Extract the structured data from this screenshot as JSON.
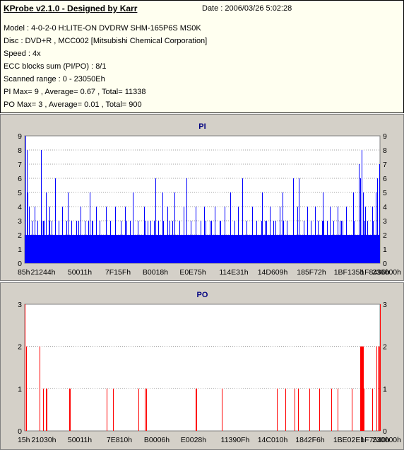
{
  "header": {
    "app_title": "KProbe v2.1.0 - Designed by Karr",
    "date": "Date : 2006/03/26 5:02:28",
    "model": "Model : 4-0-2-0 H:LITE-ON DVDRW SHM-165P6S MS0K",
    "disc": "Disc : DVD+R , MCC002 [Mitsubishi Chemical Corporation]",
    "speed": "Speed : 4x",
    "ecc": "ECC blocks sum (PI/PO) : 8/1",
    "range": "Scanned range : 0 - 23050Eh",
    "pi_stats": "PI Max= 9 , Average= 0.67 , Total= 11338",
    "po_stats": "PO Max= 3 , Average= 0.01 , Total= 900"
  },
  "colors": {
    "pi": "#0000ff",
    "po": "#ff0000",
    "plot_bg": "#ffffff",
    "panel_bg": "#d4d0c8",
    "title": "#000080"
  },
  "chart_data": [
    {
      "type": "bar",
      "title": "PI",
      "ylim": [
        0,
        9
      ],
      "yticks": [
        0,
        1,
        2,
        3,
        4,
        5,
        6,
        7,
        8,
        9
      ],
      "xlim": [
        0,
        1000
      ],
      "xtick_labels": [
        "85h",
        "21244h",
        "50011h",
        "7F15Fh",
        "B0018h",
        "E0E75h",
        "114E31h",
        "14D609h",
        "185F72h",
        "1BF135h",
        "1F8496h",
        "230000h"
      ],
      "baseline": 2,
      "spikes": [
        {
          "x": 2,
          "v": 9
        },
        {
          "x": 5,
          "v": 8
        },
        {
          "x": 8,
          "v": 5
        },
        {
          "x": 12,
          "v": 4
        },
        {
          "x": 20,
          "v": 3
        },
        {
          "x": 28,
          "v": 4
        },
        {
          "x": 35,
          "v": 3
        },
        {
          "x": 45,
          "v": 8
        },
        {
          "x": 52,
          "v": 3
        },
        {
          "x": 60,
          "v": 5
        },
        {
          "x": 70,
          "v": 4
        },
        {
          "x": 75,
          "v": 3
        },
        {
          "x": 85,
          "v": 6
        },
        {
          "x": 95,
          "v": 3
        },
        {
          "x": 105,
          "v": 4
        },
        {
          "x": 118,
          "v": 3
        },
        {
          "x": 122,
          "v": 5
        },
        {
          "x": 132,
          "v": 3
        },
        {
          "x": 145,
          "v": 3
        },
        {
          "x": 158,
          "v": 4
        },
        {
          "x": 168,
          "v": 3
        },
        {
          "x": 182,
          "v": 5
        },
        {
          "x": 188,
          "v": 3
        },
        {
          "x": 200,
          "v": 4
        },
        {
          "x": 210,
          "v": 3
        },
        {
          "x": 228,
          "v": 4
        },
        {
          "x": 240,
          "v": 3
        },
        {
          "x": 255,
          "v": 4
        },
        {
          "x": 270,
          "v": 3
        },
        {
          "x": 282,
          "v": 4
        },
        {
          "x": 296,
          "v": 3
        },
        {
          "x": 305,
          "v": 5
        },
        {
          "x": 318,
          "v": 3
        },
        {
          "x": 335,
          "v": 4
        },
        {
          "x": 345,
          "v": 3
        },
        {
          "x": 368,
          "v": 6
        },
        {
          "x": 375,
          "v": 3
        },
        {
          "x": 388,
          "v": 5
        },
        {
          "x": 402,
          "v": 4
        },
        {
          "x": 415,
          "v": 3
        },
        {
          "x": 422,
          "v": 5
        },
        {
          "x": 435,
          "v": 3
        },
        {
          "x": 448,
          "v": 4
        },
        {
          "x": 455,
          "v": 6
        },
        {
          "x": 468,
          "v": 3
        },
        {
          "x": 482,
          "v": 4
        },
        {
          "x": 495,
          "v": 3
        },
        {
          "x": 505,
          "v": 4
        },
        {
          "x": 520,
          "v": 3
        },
        {
          "x": 535,
          "v": 4
        },
        {
          "x": 548,
          "v": 3
        },
        {
          "x": 562,
          "v": 4
        },
        {
          "x": 578,
          "v": 5
        },
        {
          "x": 590,
          "v": 3
        },
        {
          "x": 600,
          "v": 4
        },
        {
          "x": 612,
          "v": 6
        },
        {
          "x": 625,
          "v": 3
        },
        {
          "x": 640,
          "v": 4
        },
        {
          "x": 652,
          "v": 3
        },
        {
          "x": 668,
          "v": 5
        },
        {
          "x": 680,
          "v": 3
        },
        {
          "x": 690,
          "v": 4
        },
        {
          "x": 705,
          "v": 3
        },
        {
          "x": 718,
          "v": 4
        },
        {
          "x": 725,
          "v": 5
        },
        {
          "x": 738,
          "v": 3
        },
        {
          "x": 755,
          "v": 6
        },
        {
          "x": 768,
          "v": 4
        },
        {
          "x": 772,
          "v": 6
        },
        {
          "x": 785,
          "v": 3
        },
        {
          "x": 795,
          "v": 4
        },
        {
          "x": 805,
          "v": 3
        },
        {
          "x": 818,
          "v": 4
        },
        {
          "x": 826,
          "v": 3
        },
        {
          "x": 838,
          "v": 5
        },
        {
          "x": 850,
          "v": 3
        },
        {
          "x": 858,
          "v": 4
        },
        {
          "x": 868,
          "v": 3
        },
        {
          "x": 880,
          "v": 4
        },
        {
          "x": 890,
          "v": 3
        },
        {
          "x": 905,
          "v": 4
        },
        {
          "x": 925,
          "v": 5
        },
        {
          "x": 940,
          "v": 7
        },
        {
          "x": 944,
          "v": 6
        },
        {
          "x": 948,
          "v": 8
        },
        {
          "x": 952,
          "v": 5
        },
        {
          "x": 958,
          "v": 4
        },
        {
          "x": 965,
          "v": 3
        },
        {
          "x": 978,
          "v": 4
        },
        {
          "x": 988,
          "v": 5
        },
        {
          "x": 993,
          "v": 6
        },
        {
          "x": 998,
          "v": 7
        }
      ]
    },
    {
      "type": "bar",
      "title": "PO",
      "ylim": [
        0,
        3
      ],
      "yticks": [
        0,
        1,
        2,
        3
      ],
      "xlim": [
        0,
        1000
      ],
      "xtick_labels": [
        "15h",
        "21030h",
        "50011h",
        "7E810h",
        "B0006h",
        "E0028h",
        "11390Fh",
        "14C010h",
        "1842F6h",
        "1BE02Eh",
        "1F7540h",
        "230000h"
      ],
      "spikes": [
        {
          "x": 0,
          "v": 3
        },
        {
          "x": 3,
          "v": 2
        },
        {
          "x": 42,
          "v": 2
        },
        {
          "x": 52,
          "v": 1
        },
        {
          "x": 59,
          "v": 1
        },
        {
          "x": 62,
          "v": 1
        },
        {
          "x": 125,
          "v": 1
        },
        {
          "x": 128,
          "v": 1
        },
        {
          "x": 230,
          "v": 1
        },
        {
          "x": 248,
          "v": 1
        },
        {
          "x": 320,
          "v": 1
        },
        {
          "x": 338,
          "v": 1
        },
        {
          "x": 342,
          "v": 1
        },
        {
          "x": 481,
          "v": 1
        },
        {
          "x": 484,
          "v": 1
        },
        {
          "x": 555,
          "v": 1
        },
        {
          "x": 710,
          "v": 1
        },
        {
          "x": 733,
          "v": 1
        },
        {
          "x": 760,
          "v": 1
        },
        {
          "x": 770,
          "v": 1
        },
        {
          "x": 802,
          "v": 1
        },
        {
          "x": 830,
          "v": 1
        },
        {
          "x": 862,
          "v": 1
        },
        {
          "x": 880,
          "v": 1
        },
        {
          "x": 920,
          "v": 1
        },
        {
          "x": 944,
          "v": 2
        },
        {
          "x": 946,
          "v": 2
        },
        {
          "x": 948,
          "v": 2
        },
        {
          "x": 950,
          "v": 2
        },
        {
          "x": 952,
          "v": 2
        },
        {
          "x": 955,
          "v": 1
        },
        {
          "x": 978,
          "v": 1
        },
        {
          "x": 990,
          "v": 2
        },
        {
          "x": 994,
          "v": 2
        },
        {
          "x": 998,
          "v": 2
        },
        {
          "x": 1000,
          "v": 3
        }
      ]
    }
  ]
}
